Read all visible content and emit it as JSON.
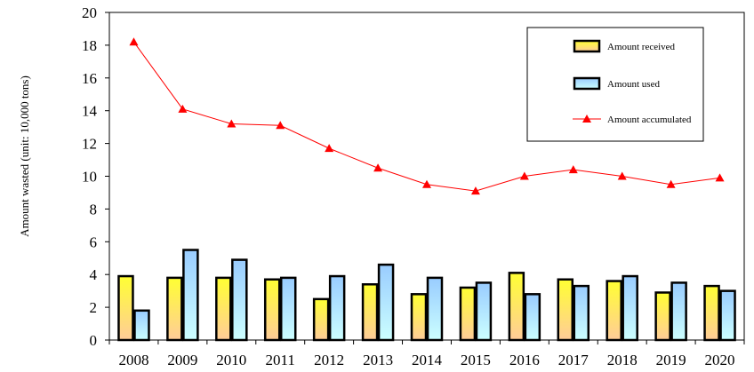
{
  "chart_data": {
    "type": "bar",
    "categories": [
      "2008",
      "2009",
      "2010",
      "2011",
      "2012",
      "2013",
      "2014",
      "2015",
      "2016",
      "2017",
      "2018",
      "2019",
      "2020"
    ],
    "series": [
      {
        "name": "Amount received",
        "kind": "bar",
        "values": [
          3.9,
          3.8,
          3.8,
          3.7,
          2.5,
          3.4,
          2.8,
          3.2,
          4.1,
          3.7,
          3.6,
          2.9,
          3.3
        ],
        "color_top": "#ffff33",
        "color_bottom": "#ffcc99"
      },
      {
        "name": "Amount used",
        "kind": "bar",
        "values": [
          1.8,
          5.5,
          4.9,
          3.8,
          3.9,
          4.6,
          3.8,
          3.5,
          2.8,
          3.3,
          3.9,
          3.5,
          3.0
        ],
        "color_top": "#99ccff",
        "color_bottom": "#ccffff"
      },
      {
        "name": "Amount accumulated",
        "kind": "line",
        "values": [
          18.2,
          14.1,
          13.2,
          13.1,
          11.7,
          10.5,
          9.5,
          9.1,
          10.0,
          10.4,
          10.0,
          9.5,
          9.9
        ],
        "color": "#ff0000"
      }
    ],
    "ylabel": "Amount wasted (unit: 10,000 tons)",
    "xlabel": "",
    "ylim": [
      0,
      20
    ],
    "yticks": [
      "0",
      "2",
      "4",
      "6",
      "8",
      "10",
      "12",
      "14",
      "16",
      "18",
      "20"
    ],
    "grid": false,
    "legend_position": "top-right"
  }
}
